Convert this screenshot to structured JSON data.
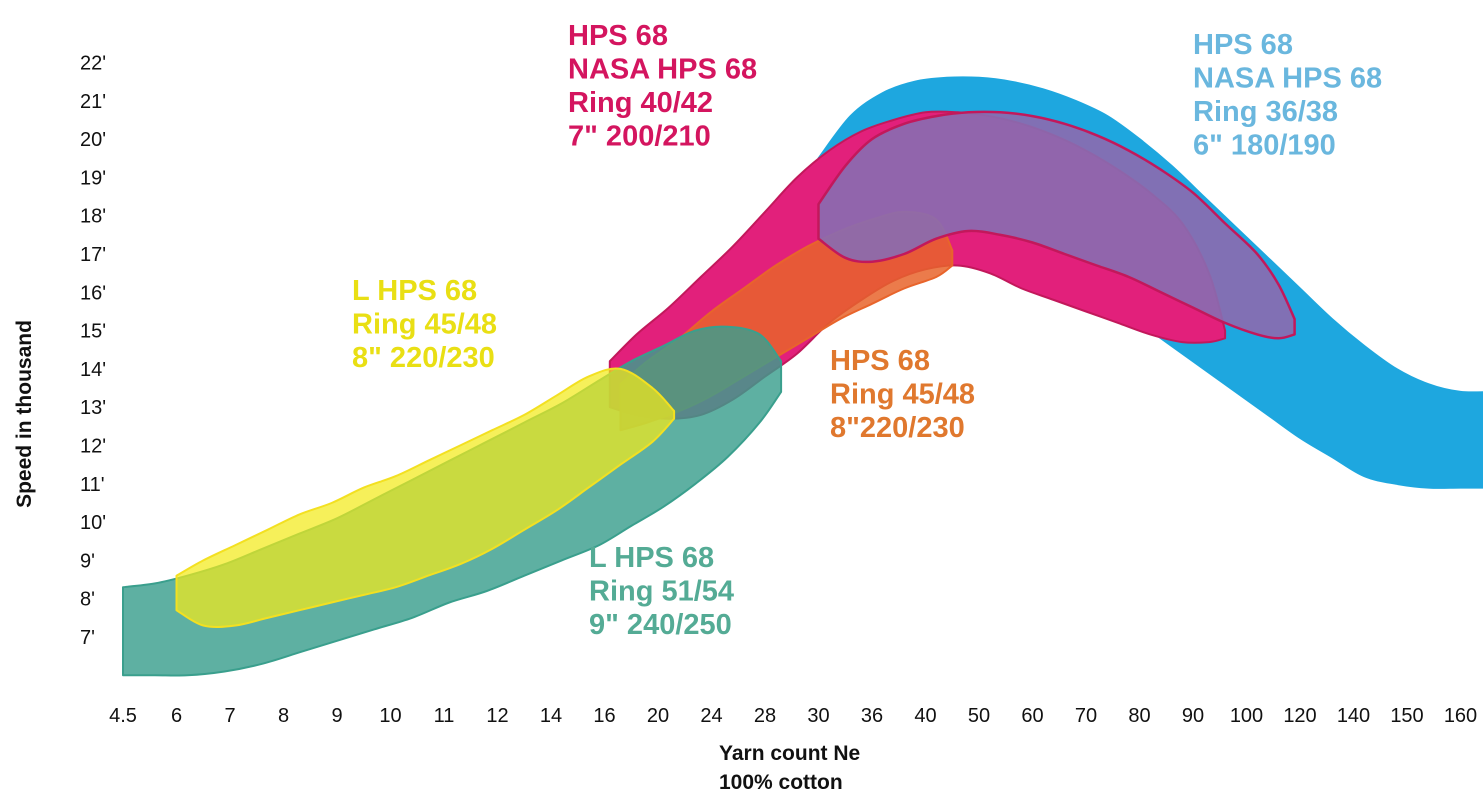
{
  "chart_data": {
    "type": "area",
    "xlabel": "Yarn count Ne",
    "xlabel_sub": "100% cotton",
    "ylabel": "Speed in thousand",
    "x_scale": "categorical",
    "x_ticks": [
      "4.5",
      "6",
      "7",
      "8",
      "9",
      "10",
      "11",
      "12",
      "14",
      "16",
      "20",
      "24",
      "28",
      "30",
      "36",
      "40",
      "50",
      "60",
      "70",
      "80",
      "90",
      "100",
      "120",
      "140",
      "150",
      "160"
    ],
    "y_ticks": [
      "7'",
      "8'",
      "9'",
      "10'",
      "11'",
      "12'",
      "13'",
      "14'",
      "15'",
      "16'",
      "17'",
      "18'",
      "19'",
      "20'",
      "21'",
      "22'"
    ],
    "y_unit": "thousand rpm",
    "ylim": [
      6,
      22.5
    ],
    "grid": false,
    "legend": "none",
    "series": [
      {
        "key": "blue",
        "labels": [
          "HPS 68",
          "NASA HPS 68",
          "Ring 36/38",
          "6\" 180/190"
        ],
        "fill": "#1ea7df",
        "stroke": "#1ea7df",
        "envelope": {
          "x_index": [
            13,
            13.6,
            14.2,
            14.8,
            15.4,
            16.0,
            16.6,
            17.2,
            17.8,
            18.4,
            19.0,
            19.6,
            20.2,
            20.8,
            21.4,
            22.0,
            22.6,
            23.2,
            23.8,
            24.4,
            25.0,
            25.6,
            25.9
          ],
          "upper": [
            19.5,
            20.6,
            21.2,
            21.5,
            21.6,
            21.6,
            21.5,
            21.3,
            21.0,
            20.6,
            20.0,
            19.3,
            18.5,
            17.7,
            16.9,
            16.1,
            15.3,
            14.6,
            14.0,
            13.6,
            13.4,
            13.4,
            13.4
          ],
          "lower": [
            17.9,
            17.4,
            17.1,
            17.2,
            17.6,
            17.6,
            17.2,
            16.8,
            16.3,
            15.8,
            15.2,
            14.6,
            14.0,
            13.4,
            12.8,
            12.2,
            11.7,
            11.2,
            11.0,
            10.9,
            10.9,
            10.9,
            10.9
          ]
        }
      },
      {
        "key": "magenta",
        "labels": [
          "HPS 68",
          "NASA HPS 68",
          "Ring 40/42",
          "7\" 200/210"
        ],
        "fill": "#e2207b",
        "stroke": "#c2185b",
        "envelope": {
          "x_index": [
            9.1,
            9.6,
            10.2,
            10.8,
            11.4,
            12.0,
            12.6,
            13.2,
            13.8,
            14.4,
            15.0,
            15.6,
            16.2,
            16.8,
            17.4,
            18.0,
            18.6,
            19.2,
            19.8,
            20.3,
            20.6
          ],
          "upper": [
            14.2,
            14.9,
            15.6,
            16.4,
            17.2,
            18.1,
            19.0,
            19.7,
            20.2,
            20.5,
            20.7,
            20.7,
            20.6,
            20.4,
            20.1,
            19.7,
            19.2,
            18.6,
            17.8,
            16.5,
            15.0
          ],
          "lower": [
            13.0,
            12.8,
            12.7,
            12.8,
            13.2,
            13.8,
            14.4,
            15.2,
            15.8,
            16.3,
            16.6,
            16.7,
            16.5,
            16.1,
            15.8,
            15.5,
            15.2,
            14.9,
            14.7,
            14.7,
            14.8
          ]
        }
      },
      {
        "key": "orange",
        "labels": [
          "HPS 68",
          "Ring 45/48",
          "8\"220/230"
        ],
        "fill": "#e8642b",
        "stroke": "#e8642b",
        "envelope": {
          "x_index": [
            9.3,
            9.8,
            10.4,
            11.0,
            11.6,
            12.2,
            12.8,
            13.4,
            14.0,
            14.6,
            15.2,
            15.5
          ],
          "upper": [
            13.6,
            14.2,
            14.8,
            15.5,
            16.1,
            16.7,
            17.2,
            17.6,
            17.9,
            18.1,
            17.9,
            17.1
          ],
          "lower": [
            12.4,
            12.6,
            12.9,
            13.3,
            13.8,
            14.3,
            14.8,
            15.3,
            15.7,
            16.1,
            16.4,
            16.7
          ]
        }
      },
      {
        "key": "purple",
        "labels": [],
        "fill": "#8a6bb0",
        "stroke": "#c2185b",
        "envelope": {
          "x_index": [
            13.0,
            13.5,
            14.0,
            14.6,
            15.2,
            15.8,
            16.4,
            17.0,
            17.6,
            18.2,
            18.8,
            19.4,
            20.0,
            20.6,
            21.2,
            21.6,
            21.9
          ],
          "upper": [
            18.3,
            19.3,
            20.0,
            20.4,
            20.6,
            20.7,
            20.7,
            20.6,
            20.4,
            20.1,
            19.7,
            19.2,
            18.6,
            17.8,
            17.0,
            16.2,
            15.3
          ],
          "lower": [
            17.4,
            16.9,
            16.8,
            17.0,
            17.4,
            17.6,
            17.5,
            17.3,
            17.0,
            16.7,
            16.4,
            16.0,
            15.6,
            15.2,
            14.9,
            14.8,
            14.9
          ]
        }
      },
      {
        "key": "teal",
        "labels": [
          "L  HPS 68",
          "Ring 51/54",
          "9\" 240/250"
        ],
        "fill": "#3a9f8d",
        "stroke": "#3a9f8d",
        "envelope": {
          "x_index": [
            0.0,
            0.6,
            1.2,
            1.9,
            2.6,
            3.3,
            4.0,
            4.7,
            5.4,
            6.1,
            6.8,
            7.5,
            8.2,
            8.9,
            9.5,
            10.1,
            10.7,
            11.3,
            11.9,
            12.3
          ],
          "upper": [
            8.3,
            8.4,
            8.6,
            8.9,
            9.3,
            9.7,
            10.1,
            10.6,
            11.1,
            11.6,
            12.1,
            12.6,
            13.1,
            13.7,
            14.2,
            14.6,
            15.0,
            15.1,
            14.9,
            14.2
          ],
          "lower": [
            6.0,
            6.0,
            6.0,
            6.1,
            6.3,
            6.6,
            6.9,
            7.2,
            7.5,
            7.9,
            8.2,
            8.6,
            9.0,
            9.4,
            9.9,
            10.4,
            11.0,
            11.7,
            12.6,
            13.4
          ]
        }
      },
      {
        "key": "yellow",
        "labels": [
          "L HPS 68",
          "Ring 45/48",
          "8\" 220/230"
        ],
        "fill": "#f3ea1a",
        "stroke": "#f3e021",
        "envelope": {
          "x_index": [
            1.0,
            1.5,
            2.1,
            2.7,
            3.3,
            3.9,
            4.5,
            5.1,
            5.7,
            6.3,
            6.9,
            7.5,
            8.1,
            8.7,
            9.3,
            9.9,
            10.3
          ],
          "upper": [
            8.6,
            9.0,
            9.4,
            9.8,
            10.2,
            10.5,
            10.9,
            11.2,
            11.6,
            12.0,
            12.4,
            12.8,
            13.3,
            13.8,
            14.0,
            13.5,
            12.9
          ],
          "lower": [
            7.7,
            7.3,
            7.3,
            7.5,
            7.7,
            7.9,
            8.1,
            8.3,
            8.6,
            8.9,
            9.3,
            9.8,
            10.3,
            10.9,
            11.5,
            12.1,
            12.7
          ]
        }
      }
    ]
  }
}
